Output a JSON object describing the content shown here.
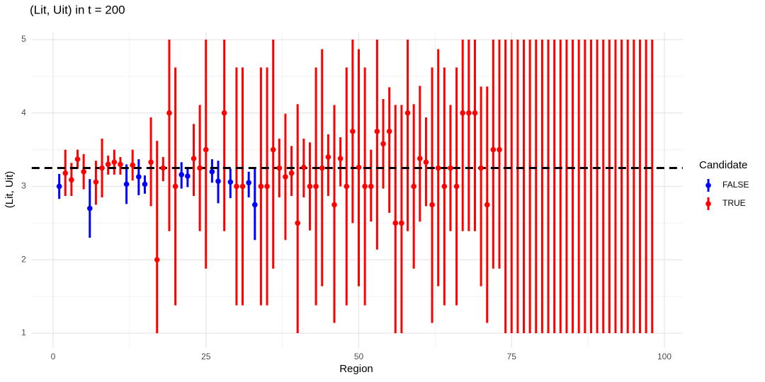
{
  "chart_data": {
    "type": "errorbar",
    "title": "(Lit, Uit) in t = 200",
    "x_label": "Region",
    "y_label": "(Lit, Uit)",
    "legend_title": "Candidate",
    "legend_position": "right",
    "grid": true,
    "xlim": [
      -3.5,
      103
    ],
    "ylim": [
      0.8,
      5.1
    ],
    "xticks": [
      0,
      25,
      50,
      75,
      100
    ],
    "yticks": [
      1,
      2,
      3,
      4,
      5
    ],
    "x_minor_grid": [
      12.5,
      37.5,
      62.5,
      87.5
    ],
    "y_minor_grid": [
      1.5,
      2.5,
      3.5,
      4.5
    ],
    "hline": 3.25,
    "hline_color": "#000000",
    "series": [
      {
        "name": "FALSE",
        "color": "#0000ff",
        "x": [
          1,
          6,
          12,
          14,
          15,
          21,
          22,
          26,
          27,
          29,
          32,
          33
        ],
        "values": [
          3.0,
          2.7,
          3.03,
          3.13,
          3.03,
          3.16,
          3.14,
          3.2,
          3.07,
          3.06,
          3.05,
          2.75
        ],
        "lower": [
          2.83,
          2.3,
          2.76,
          2.88,
          2.9,
          2.97,
          2.99,
          3.05,
          2.77,
          2.84,
          2.85,
          2.27
        ],
        "upper": [
          3.17,
          3.1,
          3.3,
          3.37,
          3.15,
          3.33,
          3.26,
          3.37,
          3.35,
          3.24,
          3.2,
          3.24
        ]
      },
      {
        "name": "TRUE",
        "color": "#ff0000",
        "x": [
          2,
          3,
          4,
          5,
          7,
          8,
          9,
          10,
          11,
          13,
          16,
          17,
          18,
          19,
          20,
          23,
          24,
          25,
          28,
          30,
          31,
          34,
          35,
          36,
          37,
          38,
          39,
          40,
          41,
          42,
          43,
          44,
          45,
          46,
          47,
          48,
          49,
          50,
          51,
          52,
          53,
          54,
          55,
          56,
          57,
          58,
          59,
          60,
          61,
          62,
          63,
          64,
          65,
          66,
          67,
          68,
          69,
          70,
          71,
          72,
          73,
          74,
          75,
          76,
          77,
          78,
          79,
          80,
          81,
          82,
          83,
          84,
          85,
          86,
          87,
          88,
          89,
          90,
          91,
          92,
          93,
          94,
          95,
          96,
          97,
          98
        ],
        "values": [
          3.18,
          3.09,
          3.37,
          3.2,
          3.06,
          3.25,
          3.3,
          3.33,
          3.3,
          3.29,
          3.33,
          2.0,
          3.25,
          4.0,
          3.0,
          3.38,
          3.25,
          3.5,
          4.0,
          3.0,
          3.0,
          3,
          3,
          3.5,
          3.25,
          3.13,
          3.18,
          2.5,
          3.26,
          3,
          3,
          3.25,
          3.4,
          2.75,
          3.38,
          3,
          3.75,
          3.26,
          3,
          3,
          3.75,
          3.58,
          3.75,
          2.5,
          2.5,
          4,
          3,
          3.38,
          3.33,
          2.75,
          3.25,
          3,
          3.25,
          3,
          4,
          4,
          4,
          3.25,
          2.75,
          3.5,
          3.5,
          null,
          null,
          null,
          null,
          null,
          null,
          null,
          null,
          null,
          null,
          null,
          null,
          null,
          null,
          null,
          null,
          null,
          null,
          null,
          null,
          null,
          null,
          null,
          null,
          null
        ],
        "lower": [
          2.87,
          2.87,
          3.24,
          2.96,
          2.75,
          2.85,
          3.16,
          3.16,
          3.16,
          3.08,
          2.73,
          1.0,
          3.07,
          2.39,
          1.38,
          2.87,
          2.39,
          1.88,
          2.39,
          1.38,
          1.38,
          1.38,
          1.38,
          1.88,
          2.85,
          2.27,
          2.87,
          1.0,
          2.85,
          2.4,
          1.38,
          1.64,
          2.87,
          1.14,
          3.0,
          1.38,
          2.5,
          1.64,
          1.38,
          2.52,
          2.14,
          2.97,
          2.64,
          1,
          1,
          2.39,
          1.88,
          2.52,
          2.73,
          1.14,
          1.64,
          1.38,
          2.39,
          1.38,
          2.39,
          2.39,
          2.39,
          1.64,
          1.14,
          1.88,
          1.88,
          1,
          1,
          1,
          1,
          1,
          1,
          1,
          1,
          1,
          1,
          1,
          1,
          1,
          1,
          1,
          1,
          1,
          1,
          1,
          1,
          1,
          1,
          1,
          1,
          1
        ],
        "upper": [
          3.5,
          3.32,
          3.5,
          3.44,
          3.35,
          3.65,
          3.42,
          3.5,
          3.4,
          3.5,
          3.94,
          3.62,
          3.4,
          5,
          4.62,
          3.85,
          4.11,
          5,
          5,
          4.62,
          4.62,
          4.62,
          4.62,
          5,
          3.65,
          3.99,
          3.55,
          4.12,
          3.65,
          3.6,
          4.62,
          4.87,
          3.71,
          4.11,
          3.67,
          4.62,
          5,
          4.87,
          4.62,
          3.5,
          5,
          4.19,
          4.35,
          4.11,
          4.11,
          5,
          4.12,
          4.37,
          3.94,
          4.62,
          4.87,
          4.62,
          4.11,
          4.62,
          5,
          5,
          5,
          4.36,
          4.36,
          5,
          5,
          5,
          5,
          5,
          5,
          5,
          5,
          5,
          5,
          5,
          5,
          5,
          5,
          5,
          5,
          5,
          5,
          5,
          5,
          5,
          5,
          5,
          5,
          5,
          5,
          5
        ]
      }
    ]
  }
}
